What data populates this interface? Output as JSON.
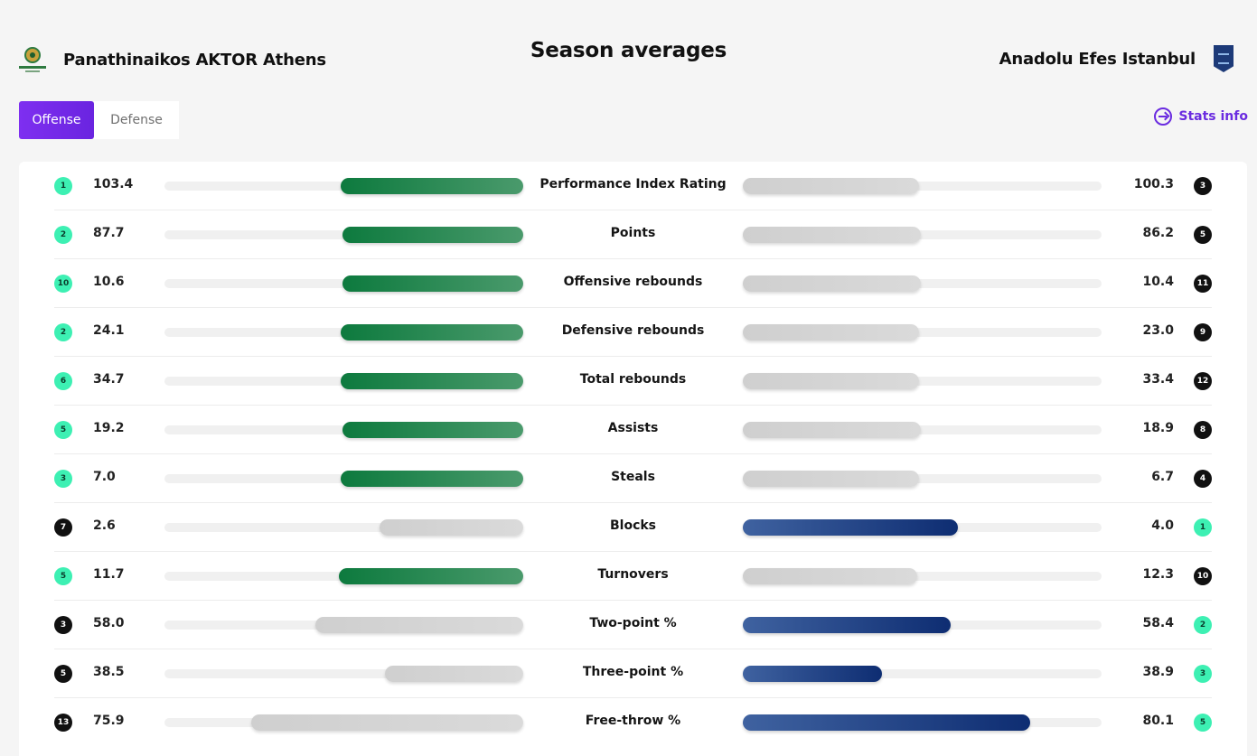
{
  "header": {
    "title": "Season averages",
    "home_team": "Panathinaikos AKTOR Athens",
    "away_team": "Anadolu Efes Istanbul",
    "home_logo_icon": "panathinaikos-logo",
    "away_logo_icon": "anadolu-efes-logo"
  },
  "tabs": [
    {
      "label": "Offense",
      "active": true
    },
    {
      "label": "Defense",
      "active": false
    }
  ],
  "stats_info": {
    "label": "Stats info",
    "icon": "arrow-circle-right-icon"
  },
  "colors": {
    "accent": "#7b2cf0",
    "home_bar": "#0d7a3e",
    "away_bar": "#0e2d72",
    "loser_bar": "#d4d4d4",
    "rank_top": "#3df0b3"
  },
  "stats": [
    {
      "label": "Performance Index Rating",
      "home_rank": "1",
      "home_value": "103.4",
      "away_value": "100.3",
      "away_rank": "3",
      "home_share": 0.51,
      "away_share": 0.49,
      "winner": "home",
      "home_rank_top": true,
      "away_rank_top": false
    },
    {
      "label": "Points",
      "home_rank": "2",
      "home_value": "87.7",
      "away_value": "86.2",
      "away_rank": "5",
      "home_share": 0.505,
      "away_share": 0.495,
      "winner": "home",
      "home_rank_top": true,
      "away_rank_top": false
    },
    {
      "label": "Offensive rebounds",
      "home_rank": "10",
      "home_value": "10.6",
      "away_value": "10.4",
      "away_rank": "11",
      "home_share": 0.505,
      "away_share": 0.495,
      "winner": "home",
      "home_rank_top": true,
      "away_rank_top": false
    },
    {
      "label": "Defensive rebounds",
      "home_rank": "2",
      "home_value": "24.1",
      "away_value": "23.0",
      "away_rank": "9",
      "home_share": 0.51,
      "away_share": 0.49,
      "winner": "home",
      "home_rank_top": true,
      "away_rank_top": false
    },
    {
      "label": "Total rebounds",
      "home_rank": "6",
      "home_value": "34.7",
      "away_value": "33.4",
      "away_rank": "12",
      "home_share": 0.51,
      "away_share": 0.49,
      "winner": "home",
      "home_rank_top": true,
      "away_rank_top": false
    },
    {
      "label": "Assists",
      "home_rank": "5",
      "home_value": "19.2",
      "away_value": "18.9",
      "away_rank": "8",
      "home_share": 0.505,
      "away_share": 0.495,
      "winner": "home",
      "home_rank_top": true,
      "away_rank_top": false
    },
    {
      "label": "Steals",
      "home_rank": "3",
      "home_value": "7.0",
      "away_value": "6.7",
      "away_rank": "4",
      "home_share": 0.51,
      "away_share": 0.49,
      "winner": "home",
      "home_rank_top": true,
      "away_rank_top": false
    },
    {
      "label": "Blocks",
      "home_rank": "7",
      "home_value": "2.6",
      "away_value": "4.0",
      "away_rank": "1",
      "home_share": 0.4,
      "away_share": 0.6,
      "winner": "away",
      "home_rank_top": false,
      "away_rank_top": true
    },
    {
      "label": "Turnovers",
      "home_rank": "5",
      "home_value": "11.7",
      "away_value": "12.3",
      "away_rank": "10",
      "home_share": 0.515,
      "away_share": 0.485,
      "winner": "home",
      "home_rank_top": true,
      "away_rank_top": false
    },
    {
      "label": "Two-point %",
      "home_rank": "3",
      "home_value": "58.0",
      "away_value": "58.4",
      "away_rank": "2",
      "home_share": 0.58,
      "away_share": 0.58,
      "winner": "away",
      "home_rank_top": false,
      "away_rank_top": true
    },
    {
      "label": "Three-point %",
      "home_rank": "5",
      "home_value": "38.5",
      "away_value": "38.9",
      "away_rank": "3",
      "home_share": 0.385,
      "away_share": 0.389,
      "winner": "away",
      "home_rank_top": false,
      "away_rank_top": true
    },
    {
      "label": "Free-throw %",
      "home_rank": "13",
      "home_value": "75.9",
      "away_value": "80.1",
      "away_rank": "5",
      "home_share": 0.759,
      "away_share": 0.801,
      "winner": "away",
      "home_rank_top": false,
      "away_rank_top": true
    }
  ]
}
